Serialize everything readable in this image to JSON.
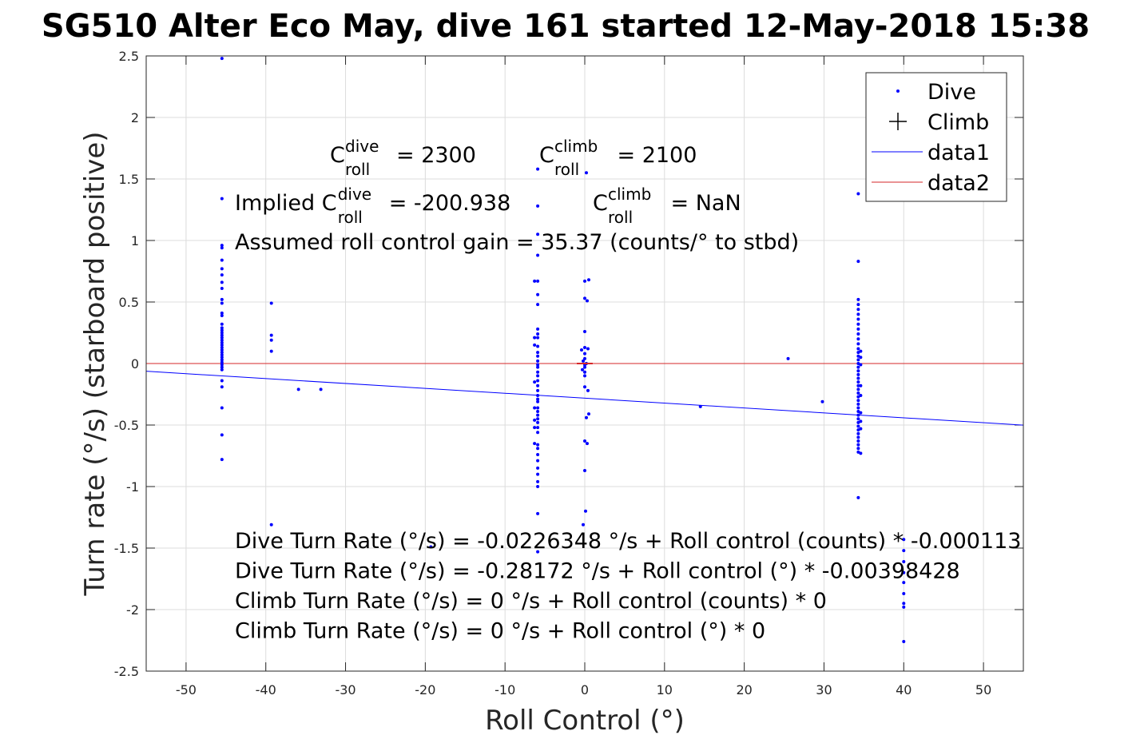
{
  "chart_data": {
    "type": "scatter",
    "title": "SG510 Alter Eco May, dive 161 started 12-May-2018 15:38",
    "xlabel": "Roll Control (°)",
    "ylabel": "Turn rate (°/s) (starboard positive)",
    "xlim": [
      -55,
      55
    ],
    "ylim": [
      -2.5,
      2.5
    ],
    "xticks": [
      -50,
      -40,
      -30,
      -20,
      -10,
      0,
      10,
      20,
      30,
      40,
      50
    ],
    "yticks": [
      -2.5,
      -2,
      -1.5,
      -1,
      -0.5,
      0,
      0.5,
      1,
      1.5,
      2,
      2.5
    ],
    "grid": true,
    "legend_placement": "top-right",
    "colors": {
      "dive": "#0000ff",
      "data1": "#0000ff",
      "data2": "#d62728",
      "climb": "#000000"
    },
    "series": [
      {
        "name": "Dive",
        "marker": "dot",
        "points": [
          [
            -45.5,
            2.48
          ],
          [
            -45.5,
            1.34
          ],
          [
            -45.5,
            0.96
          ],
          [
            -45.5,
            0.94
          ],
          [
            -45.5,
            0.84
          ],
          [
            -45.5,
            0.77
          ],
          [
            -45.5,
            0.72
          ],
          [
            -45.5,
            0.66
          ],
          [
            -45.5,
            0.61
          ],
          [
            -45.5,
            0.52
          ],
          [
            -45.5,
            0.49
          ],
          [
            -45.5,
            0.41
          ],
          [
            -45.5,
            0.39
          ],
          [
            -45.5,
            0.32
          ],
          [
            -45.5,
            0.29
          ],
          [
            -45.5,
            0.27
          ],
          [
            -45.5,
            0.25
          ],
          [
            -45.5,
            0.23
          ],
          [
            -45.5,
            0.21
          ],
          [
            -45.5,
            0.19
          ],
          [
            -45.5,
            0.17
          ],
          [
            -45.5,
            0.15
          ],
          [
            -45.5,
            0.13
          ],
          [
            -45.5,
            0.11
          ],
          [
            -45.5,
            0.09
          ],
          [
            -45.5,
            0.07
          ],
          [
            -45.5,
            0.05
          ],
          [
            -45.5,
            0.03
          ],
          [
            -45.5,
            0.01
          ],
          [
            -45.5,
            -0.01
          ],
          [
            -45.5,
            -0.03
          ],
          [
            -45.5,
            -0.05
          ],
          [
            -45.5,
            -0.14
          ],
          [
            -45.5,
            -0.19
          ],
          [
            -45.5,
            -0.36
          ],
          [
            -45.5,
            -0.58
          ],
          [
            -45.5,
            -0.78
          ],
          [
            -39.3,
            0.49
          ],
          [
            -39.3,
            0.23
          ],
          [
            -39.3,
            0.19
          ],
          [
            -39.3,
            0.1
          ],
          [
            -39.3,
            -1.31
          ],
          [
            -35.9,
            -0.21
          ],
          [
            -33.1,
            -0.21
          ],
          [
            -19.3,
            -1.49
          ],
          [
            -5.9,
            1.58
          ],
          [
            -5.9,
            1.28
          ],
          [
            -5.9,
            1.05
          ],
          [
            -5.9,
            0.88
          ],
          [
            -5.9,
            0.67
          ],
          [
            -5.9,
            0.56
          ],
          [
            -5.9,
            0.48
          ],
          [
            -5.9,
            0.28
          ],
          [
            -5.9,
            0.24
          ],
          [
            -5.9,
            0.21
          ],
          [
            -5.9,
            0.14
          ],
          [
            -5.9,
            0.09
          ],
          [
            -5.9,
            0.06
          ],
          [
            -5.9,
            0.02
          ],
          [
            -5.9,
            -0.01
          ],
          [
            -5.9,
            -0.03
          ],
          [
            -5.9,
            -0.07
          ],
          [
            -5.9,
            -0.1
          ],
          [
            -5.9,
            -0.14
          ],
          [
            -5.9,
            -0.18
          ],
          [
            -5.9,
            -0.22
          ],
          [
            -5.9,
            -0.26
          ],
          [
            -5.9,
            -0.29
          ],
          [
            -5.9,
            -0.31
          ],
          [
            -5.9,
            -0.36
          ],
          [
            -5.9,
            -0.39
          ],
          [
            -5.9,
            -0.42
          ],
          [
            -5.9,
            -0.45
          ],
          [
            -5.9,
            -0.48
          ],
          [
            -5.9,
            -0.52
          ],
          [
            -5.9,
            -0.56
          ],
          [
            -5.9,
            -0.66
          ],
          [
            -5.9,
            -0.69
          ],
          [
            -5.9,
            -0.74
          ],
          [
            -5.9,
            -0.79
          ],
          [
            -5.9,
            -0.85
          ],
          [
            -5.9,
            -0.9
          ],
          [
            -5.9,
            -0.96
          ],
          [
            -5.9,
            -1.0
          ],
          [
            -5.9,
            -1.22
          ],
          [
            -5.9,
            -1.53
          ],
          [
            -6.3,
            0.67
          ],
          [
            -6.3,
            0.21
          ],
          [
            -6.3,
            0.15
          ],
          [
            -6.3,
            -0.15
          ],
          [
            -6.3,
            -0.36
          ],
          [
            -6.3,
            -0.46
          ],
          [
            -6.3,
            -0.52
          ],
          [
            -6.3,
            -0.65
          ],
          [
            0.2,
            1.55
          ],
          [
            0.5,
            0.68
          ],
          [
            0.0,
            0.67
          ],
          [
            0.0,
            0.53
          ],
          [
            0.3,
            0.51
          ],
          [
            0.0,
            0.26
          ],
          [
            0.0,
            0.13
          ],
          [
            0.4,
            0.12
          ],
          [
            -0.4,
            0.11
          ],
          [
            0.0,
            0.08
          ],
          [
            0.0,
            0.04
          ],
          [
            -0.2,
            0.02
          ],
          [
            0.2,
            0.0
          ],
          [
            0.0,
            -0.01
          ],
          [
            0.0,
            -0.03
          ],
          [
            -0.3,
            -0.05
          ],
          [
            0.0,
            -0.07
          ],
          [
            0.0,
            -0.1
          ],
          [
            0.0,
            -0.19
          ],
          [
            0.4,
            -0.22
          ],
          [
            0.5,
            -0.41
          ],
          [
            0.2,
            -0.44
          ],
          [
            0.0,
            -0.63
          ],
          [
            0.3,
            -0.65
          ],
          [
            0.0,
            -0.87
          ],
          [
            0.1,
            -1.2
          ],
          [
            -0.2,
            -1.31
          ],
          [
            14.5,
            -0.35
          ],
          [
            25.5,
            0.04
          ],
          [
            29.8,
            -0.31
          ],
          [
            34.3,
            1.38
          ],
          [
            34.3,
            0.83
          ],
          [
            34.3,
            0.52
          ],
          [
            34.3,
            0.48
          ],
          [
            34.3,
            0.44
          ],
          [
            34.3,
            0.4
          ],
          [
            34.3,
            0.36
          ],
          [
            34.3,
            0.32
          ],
          [
            34.3,
            0.28
          ],
          [
            34.3,
            0.24
          ],
          [
            34.3,
            0.2
          ],
          [
            34.3,
            0.16
          ],
          [
            34.3,
            0.12
          ],
          [
            34.3,
            0.09
          ],
          [
            34.3,
            0.06
          ],
          [
            34.3,
            0.03
          ],
          [
            34.3,
            0.0
          ],
          [
            34.3,
            -0.03
          ],
          [
            34.3,
            -0.06
          ],
          [
            34.3,
            -0.09
          ],
          [
            34.3,
            -0.12
          ],
          [
            34.3,
            -0.15
          ],
          [
            34.3,
            -0.18
          ],
          [
            34.3,
            -0.21
          ],
          [
            34.3,
            -0.24
          ],
          [
            34.3,
            -0.27
          ],
          [
            34.3,
            -0.3
          ],
          [
            34.3,
            -0.33
          ],
          [
            34.3,
            -0.36
          ],
          [
            34.3,
            -0.39
          ],
          [
            34.3,
            -0.42
          ],
          [
            34.3,
            -0.45
          ],
          [
            34.3,
            -0.48
          ],
          [
            34.3,
            -0.51
          ],
          [
            34.3,
            -0.54
          ],
          [
            34.3,
            -0.57
          ],
          [
            34.3,
            -0.6
          ],
          [
            34.3,
            -0.63
          ],
          [
            34.3,
            -0.66
          ],
          [
            34.3,
            -0.69
          ],
          [
            34.3,
            -0.72
          ],
          [
            34.3,
            -1.09
          ],
          [
            34.6,
            0.1
          ],
          [
            34.6,
            0.05
          ],
          [
            34.6,
            -0.01
          ],
          [
            34.6,
            -0.18
          ],
          [
            34.6,
            -0.26
          ],
          [
            34.6,
            -0.4
          ],
          [
            34.6,
            -0.47
          ],
          [
            34.6,
            -0.53
          ],
          [
            34.6,
            -0.73
          ],
          [
            40.0,
            -1.43
          ],
          [
            40.0,
            -1.52
          ],
          [
            40.0,
            -1.61
          ],
          [
            40.0,
            -1.7
          ],
          [
            40.0,
            -1.78
          ],
          [
            40.0,
            -1.87
          ],
          [
            40.0,
            -1.95
          ],
          [
            40.0,
            -1.98
          ],
          [
            40.0,
            -2.26
          ]
        ]
      },
      {
        "name": "Climb",
        "marker": "plus",
        "points": []
      },
      {
        "name": "data1",
        "type": "line",
        "x": [
          -55,
          55
        ],
        "y": [
          -0.0626,
          -0.5009
        ]
      },
      {
        "name": "data2",
        "type": "line",
        "x": [
          -55,
          55
        ],
        "y": [
          0,
          0
        ]
      }
    ],
    "annotations": {
      "c_roll_dive": {
        "base": "C",
        "sup": "dive",
        "sub": "roll",
        "value": "= 2300"
      },
      "c_roll_climb": {
        "base": "C",
        "sup": "climb",
        "sub": "roll",
        "value": "= 2100"
      },
      "implied_dive": {
        "prefix": "Implied C",
        "sup": "dive",
        "sub": "roll",
        "value": "= -200.938"
      },
      "implied_climb": {
        "base": "C",
        "sup": "climb",
        "sub": "roll",
        "value": "= NaN"
      },
      "gain": "Assumed roll control gain = 35.37 (counts/° to stbd)",
      "eq_lines": [
        "Dive Turn Rate (°/s) = -0.0226348 °/s + Roll control (counts) * -0.000113",
        "Dive Turn Rate (°/s) = -0.28172 °/s + Roll control (°) * -0.00398428",
        "Climb Turn Rate (°/s) = 0 °/s + Roll control (counts) * 0",
        "Climb Turn Rate (°/s) = 0 °/s + Roll control (°) * 0"
      ]
    }
  }
}
